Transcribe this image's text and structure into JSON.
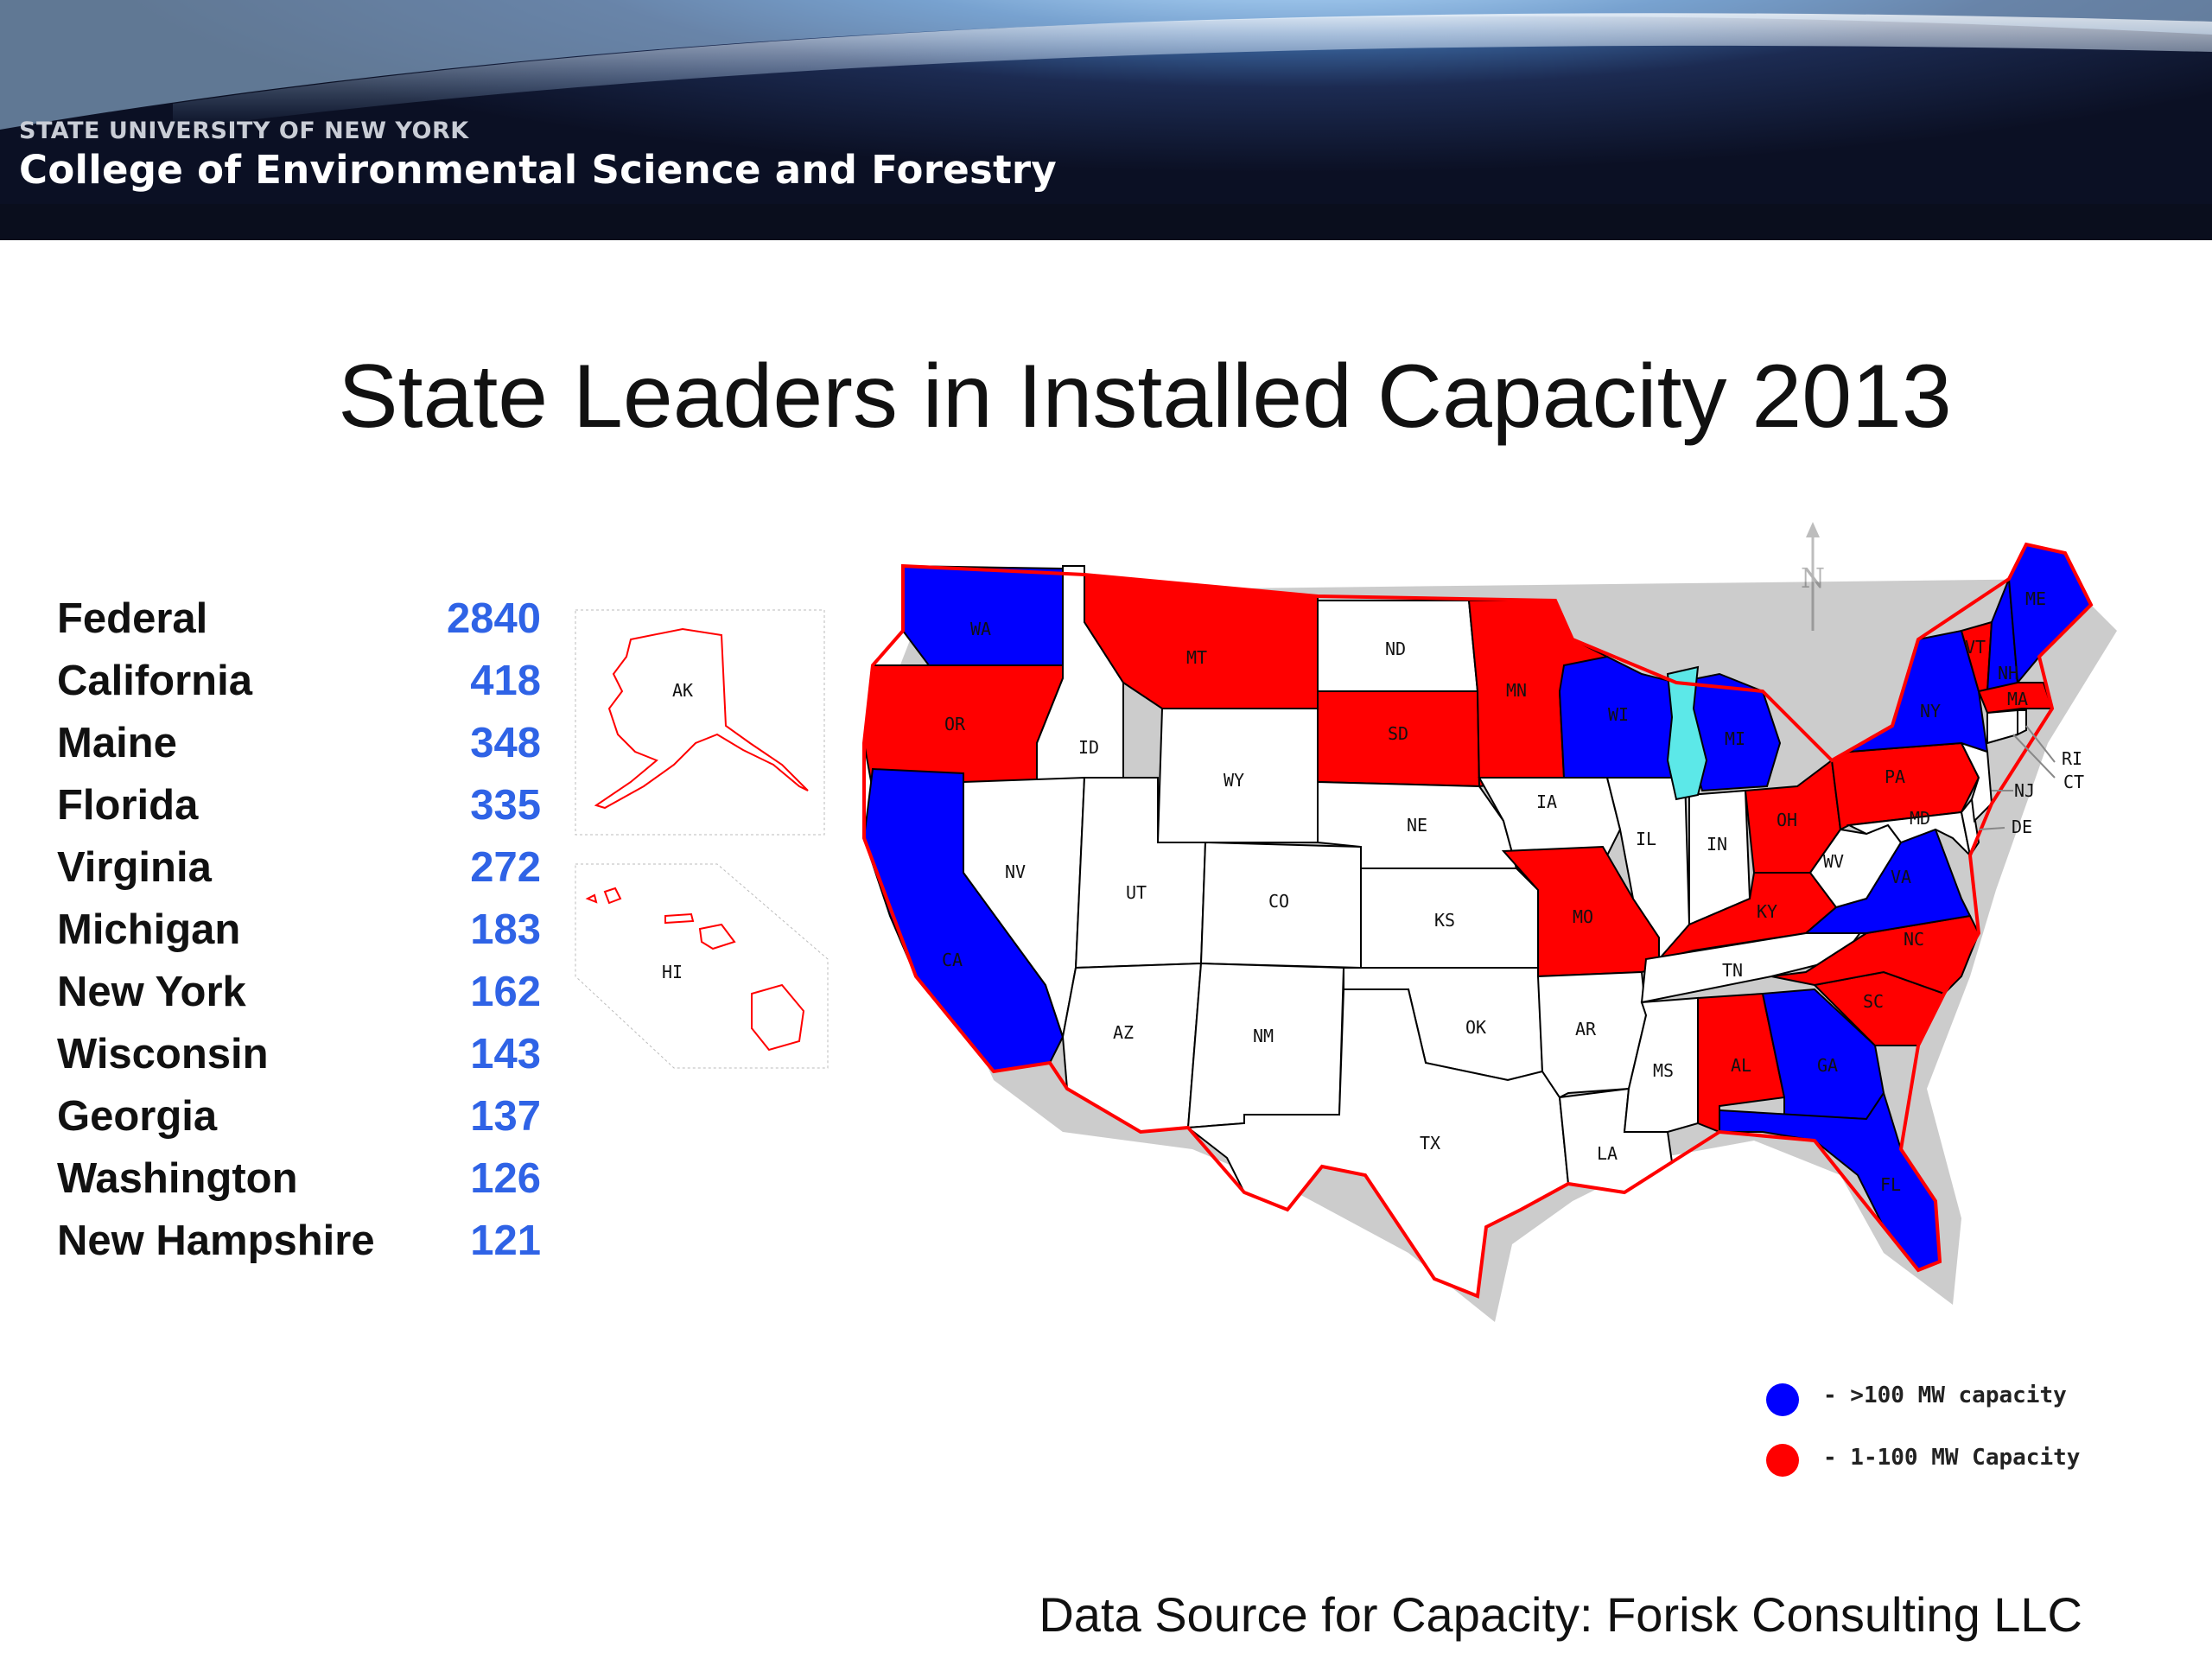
{
  "header": {
    "institution_line1": "STATE UNIVERSITY OF NEW YORK",
    "institution_line2": "College of Environmental Science and Forestry"
  },
  "title": "State Leaders in Installed Capacity 2013",
  "leaders": [
    {
      "name": "Federal",
      "value": "2840"
    },
    {
      "name": "California",
      "value": "418"
    },
    {
      "name": "Maine",
      "value": "348"
    },
    {
      "name": "Florida",
      "value": "335"
    },
    {
      "name": "Virginia",
      "value": "272"
    },
    {
      "name": "Michigan",
      "value": "183"
    },
    {
      "name": "New York",
      "value": "162"
    },
    {
      "name": "Wisconsin",
      "value": "143"
    },
    {
      "name": "Georgia",
      "value": "137"
    },
    {
      "name": "Washington",
      "value": "126"
    },
    {
      "name": "New Hampshire",
      "value": "121"
    }
  ],
  "map": {
    "colors": {
      "high": "#0000ff",
      "mid": "#ff0000",
      "none": "#ffffff",
      "outline": "#ff0000",
      "lake": "#5ce8e8"
    },
    "state_labels": {
      "AK": "AK",
      "HI": "HI",
      "WA": "WA",
      "OR": "OR",
      "CA": "CA",
      "ID": "ID",
      "NV": "NV",
      "MT": "MT",
      "WY": "WY",
      "UT": "UT",
      "AZ": "AZ",
      "CO": "CO",
      "NM": "NM",
      "ND": "ND",
      "SD": "SD",
      "NE": "NE",
      "KS": "KS",
      "OK": "OK",
      "TX": "TX",
      "MN": "MN",
      "IA": "IA",
      "MO": "MO",
      "AR": "AR",
      "LA": "LA",
      "WI": "WI",
      "IL": "IL",
      "MI": "MI",
      "IN": "IN",
      "OH": "OH",
      "KY": "KY",
      "TN": "TN",
      "MS": "MS",
      "AL": "AL",
      "GA": "GA",
      "FL": "FL",
      "SC": "SC",
      "NC": "NC",
      "VA": "VA",
      "WV": "WV",
      "PA": "PA",
      "NY": "NY",
      "VT": "VT",
      "NH": "NH",
      "ME": "ME",
      "MA": "MA",
      "RI": "RI",
      "CT": "CT",
      "NJ": "NJ",
      "DE": "DE",
      "MD": "MD"
    },
    "high_states": [
      "WA",
      "CA",
      "WI",
      "MI",
      "NY",
      "NH",
      "ME",
      "VA",
      "GA",
      "FL"
    ],
    "mid_states": [
      "OR",
      "MT",
      "SD",
      "MN",
      "MO",
      "OH",
      "KY",
      "PA",
      "VT",
      "MA",
      "NC",
      "SC",
      "AL"
    ],
    "compass_label": "N",
    "legend": [
      {
        "color": "#0000ff",
        "label": "- >100 MW capacity"
      },
      {
        "color": "#ff0000",
        "label": "- 1-100 MW Capacity"
      }
    ]
  },
  "source": "Data Source for Capacity: Forisk Consulting LLC"
}
